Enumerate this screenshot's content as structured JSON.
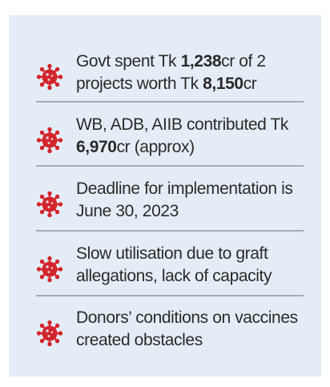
{
  "accent_color": "#d2252b",
  "icon": "virus-icon",
  "items": [
    {
      "parts": [
        {
          "text": "Govt spent Tk ",
          "bold": false
        },
        {
          "text": "1,238",
          "bold": true
        },
        {
          "text": "cr of 2 projects worth Tk ",
          "bold": false
        },
        {
          "text": "8,150",
          "bold": true
        },
        {
          "text": "cr",
          "bold": false
        }
      ]
    },
    {
      "parts": [
        {
          "text": "WB, ADB, AIIB contributed Tk ",
          "bold": false
        },
        {
          "text": "6,970",
          "bold": true
        },
        {
          "text": "cr (approx)",
          "bold": false
        }
      ]
    },
    {
      "parts": [
        {
          "text": "Deadline for implementation is June 30, 2023",
          "bold": false
        }
      ]
    },
    {
      "parts": [
        {
          "text": "Slow utilisation due to graft allegations, lack of capacity",
          "bold": false
        }
      ]
    },
    {
      "parts": [
        {
          "text": "Donors’ conditions on vaccines created obstacles",
          "bold": false
        }
      ]
    }
  ]
}
